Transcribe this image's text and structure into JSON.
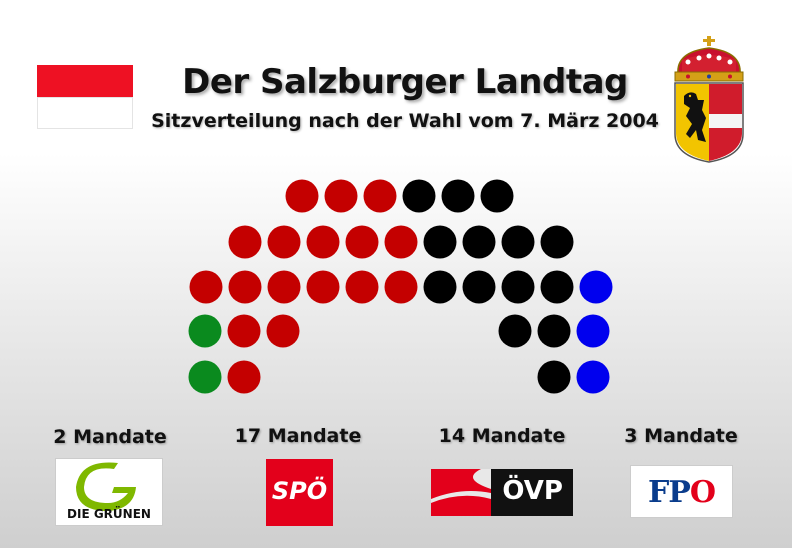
{
  "title": "Der Salzburger Landtag",
  "subtitle": "Sitzverteilung nach der Wahl vom 7. März 2004",
  "flag": {
    "colors": [
      "#ee1123",
      "#ffffff"
    ]
  },
  "coat_of_arms": {
    "icon": "salzburg-coat-of-arms-icon"
  },
  "parties": [
    {
      "id": "gruene",
      "mandate_label": "2 Mandate",
      "seats": 2,
      "color": "#0a8a1e",
      "logo_text": "DIE GRÜNEN"
    },
    {
      "id": "spoe",
      "mandate_label": "17 Mandate",
      "seats": 17,
      "color": "#c40000",
      "logo_text": "SPÖ"
    },
    {
      "id": "oevp",
      "mandate_label": "14 Mandate",
      "seats": 14,
      "color": "#000000",
      "logo_text": "ÖVP"
    },
    {
      "id": "fpoe",
      "mandate_label": "3 Mandate",
      "seats": 3,
      "color": "#0000ee",
      "logo_text": "FPÖ"
    }
  ],
  "seat_rows": [
    [
      "spoe",
      "spoe",
      "spoe",
      "oevp",
      "oevp",
      "oevp"
    ],
    [
      "spoe",
      "spoe",
      "spoe",
      "spoe",
      "spoe",
      "oevp",
      "oevp",
      "oevp",
      "oevp"
    ],
    [
      "spoe",
      "spoe",
      "spoe",
      "spoe",
      "spoe",
      "spoe",
      "oevp",
      "oevp",
      "oevp",
      "oevp",
      "fpoe"
    ],
    [
      "gruene",
      "spoe",
      "spoe",
      "oevp",
      "oevp",
      "fpoe"
    ],
    [
      "gruene",
      "spoe",
      "oevp",
      "fpoe"
    ]
  ]
}
